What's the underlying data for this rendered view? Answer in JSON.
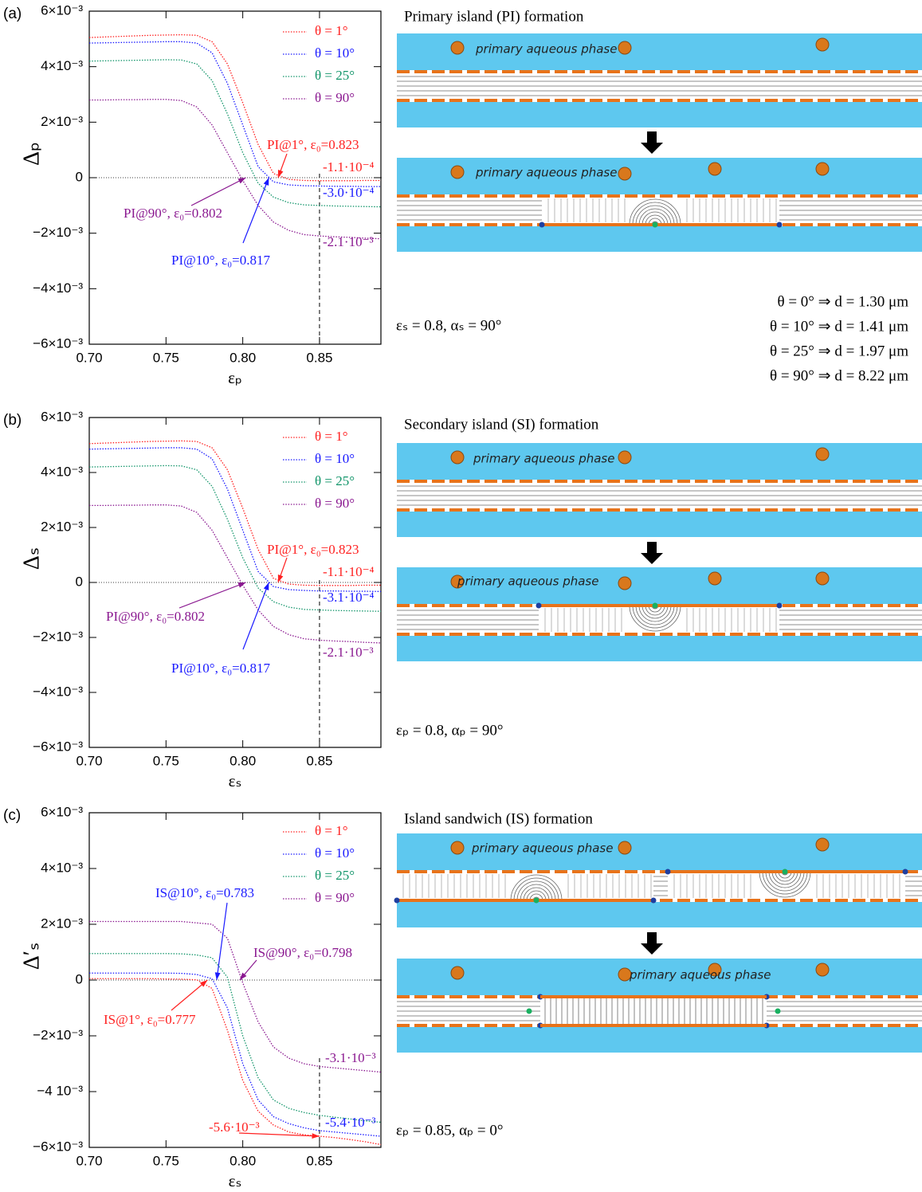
{
  "chart_data": [
    {
      "type": "line",
      "panel_label": "(a)",
      "x_label": "εₚ",
      "y_label": "Δₚ",
      "xlim": [
        0.7,
        0.89
      ],
      "ylim": [
        -0.006,
        0.006
      ],
      "xticks": [
        {
          "value": 0.7,
          "label": "0.70"
        },
        {
          "value": 0.75,
          "label": "0.75"
        },
        {
          "value": 0.8,
          "label": "0.80"
        },
        {
          "value": 0.85,
          "label": "0.85"
        }
      ],
      "yticks": [
        {
          "value": 0.006,
          "label": "6×10⁻³"
        },
        {
          "value": 0.004,
          "label": "4×10⁻³"
        },
        {
          "value": 0.002,
          "label": "2×10⁻³"
        },
        0,
        {
          "value": -0.002,
          "label": "−2×10⁻³"
        },
        {
          "value": -0.004,
          "label": "−4×10⁻³"
        },
        {
          "value": -0.006,
          "label": "−6×10⁻³"
        }
      ],
      "legend": "upper right",
      "reference_x": 0.85,
      "x": [
        0.7,
        0.71,
        0.72,
        0.73,
        0.74,
        0.75,
        0.76,
        0.77,
        0.78,
        0.79,
        0.8,
        0.81,
        0.82,
        0.83,
        0.84,
        0.85,
        0.86,
        0.87,
        0.88,
        0.89
      ],
      "series": [
        {
          "name": "θ = 1°",
          "color": "#ff2020",
          "values": [
            0.00505,
            0.00507,
            0.00509,
            0.00511,
            0.00513,
            0.00514,
            0.00515,
            0.00513,
            0.0049,
            0.0041,
            0.0027,
            0.0012,
            0.00015,
            -6e-05,
            -0.0001,
            -0.00011,
            -0.00011,
            -0.00011,
            -0.0001,
            -0.0001
          ]
        },
        {
          "name": "θ = 10°",
          "color": "#1a1aff",
          "values": [
            0.00485,
            0.00486,
            0.00487,
            0.00488,
            0.00489,
            0.0049,
            0.0049,
            0.00485,
            0.0045,
            0.0034,
            0.0019,
            0.0004,
            -0.00015,
            -0.00026,
            -0.00029,
            -0.0003,
            -0.00031,
            -0.00031,
            -0.00032,
            -0.00032
          ]
        },
        {
          "name": "θ = 25°",
          "color": "#12956a",
          "values": [
            0.0042,
            0.00421,
            0.00422,
            0.00423,
            0.00424,
            0.00425,
            0.00424,
            0.0041,
            0.0035,
            0.0023,
            0.0009,
            -0.0002,
            -0.0007,
            -0.0009,
            -0.00098,
            -0.001,
            -0.00102,
            -0.00103,
            -0.00104,
            -0.00105
          ]
        },
        {
          "name": "θ = 90°",
          "color": "#8a1890",
          "values": [
            0.0028,
            0.0028,
            0.00281,
            0.00281,
            0.00282,
            0.00282,
            0.00278,
            0.00255,
            0.0019,
            0.0009,
            -0.0001,
            -0.001,
            -0.0016,
            -0.0019,
            -0.00205,
            -0.0021,
            -0.00213,
            -0.00215,
            -0.00218,
            -0.0022
          ]
        }
      ],
      "annotations": [
        {
          "text": "PI@1°, ε₀=0.823",
          "x": 0.823,
          "y": 0,
          "color": "#ff2020"
        },
        {
          "text": "PI@90°, ε₀=0.802",
          "x": 0.802,
          "y": 0,
          "color": "#8a1890"
        },
        {
          "text": "PI@10°, ε₀=0.817",
          "x": 0.817,
          "y": 0,
          "color": "#1a1aff"
        },
        {
          "text": "-1.1·10⁻⁴",
          "x": 0.85,
          "y": -0.00011,
          "color": "#ff2020"
        },
        {
          "text": "-3.0·10⁻⁴",
          "x": 0.85,
          "y": -0.0003,
          "color": "#1a1aff"
        },
        {
          "text": "-2.1·10⁻³",
          "x": 0.85,
          "y": -0.0021,
          "color": "#8a1890"
        }
      ],
      "diagram": {
        "title": "Primary island (PI) formation",
        "labels": [
          "primary aqueous phase",
          "primary aqueous phase"
        ],
        "parameters": "εₛ = 0.8, αₛ = 90°",
        "notes": [
          "θ = 0° ⇒ d = 1.30 μm",
          "θ = 10° ⇒ d = 1.41 μm",
          "θ = 25°  ⇒ d = 1.97 μm",
          "θ = 90°  ⇒ d = 8.22 μm"
        ]
      }
    },
    {
      "type": "line",
      "panel_label": "(b)",
      "x_label": "εₛ",
      "y_label": "Δₛ",
      "xlim": [
        0.7,
        0.89
      ],
      "ylim": [
        -0.006,
        0.006
      ],
      "xticks": [
        {
          "value": 0.7,
          "label": "0.70"
        },
        {
          "value": 0.75,
          "label": "0.75"
        },
        {
          "value": 0.8,
          "label": "0.80"
        },
        {
          "value": 0.85,
          "label": "0.85"
        }
      ],
      "yticks": [
        {
          "value": 0.006,
          "label": "6×10⁻³"
        },
        {
          "value": 0.004,
          "label": "4×10⁻³"
        },
        {
          "value": 0.002,
          "label": "2×10⁻³"
        },
        0,
        {
          "value": -0.002,
          "label": "−2×10⁻³"
        },
        {
          "value": -0.004,
          "label": "−4×10⁻³"
        },
        {
          "value": -0.006,
          "label": "−6×10⁻³"
        }
      ],
      "legend": "upper right",
      "reference_x": 0.85,
      "x": [
        0.7,
        0.71,
        0.72,
        0.73,
        0.74,
        0.75,
        0.76,
        0.77,
        0.78,
        0.79,
        0.8,
        0.81,
        0.82,
        0.83,
        0.84,
        0.85,
        0.86,
        0.87,
        0.88,
        0.89
      ],
      "series": [
        {
          "name": "θ = 1°",
          "color": "#ff2020",
          "values": [
            0.00505,
            0.00507,
            0.00509,
            0.00511,
            0.00513,
            0.00514,
            0.00515,
            0.00513,
            0.0049,
            0.0041,
            0.0027,
            0.0012,
            0.00015,
            -6e-05,
            -0.0001,
            -0.00011,
            -0.00011,
            -0.00011,
            -0.0001,
            -0.0001
          ]
        },
        {
          "name": "θ = 10°",
          "color": "#1a1aff",
          "values": [
            0.00485,
            0.00486,
            0.00487,
            0.00488,
            0.00489,
            0.0049,
            0.0049,
            0.00485,
            0.0045,
            0.0034,
            0.0019,
            0.0004,
            -0.00015,
            -0.00026,
            -0.00029,
            -0.00031,
            -0.00031,
            -0.00032,
            -0.00032,
            -0.00033
          ]
        },
        {
          "name": "θ = 25°",
          "color": "#12956a",
          "values": [
            0.0042,
            0.00421,
            0.00422,
            0.00423,
            0.00424,
            0.00425,
            0.00424,
            0.0041,
            0.0035,
            0.0023,
            0.0009,
            -0.0002,
            -0.0007,
            -0.0009,
            -0.00098,
            -0.001,
            -0.00102,
            -0.00103,
            -0.00104,
            -0.00105
          ]
        },
        {
          "name": "θ = 90°",
          "color": "#8a1890",
          "values": [
            0.0028,
            0.0028,
            0.00281,
            0.00281,
            0.00282,
            0.00282,
            0.00278,
            0.00255,
            0.0019,
            0.0009,
            -0.0001,
            -0.001,
            -0.0016,
            -0.0019,
            -0.00205,
            -0.0021,
            -0.00213,
            -0.00215,
            -0.00218,
            -0.0022
          ]
        }
      ],
      "annotations": [
        {
          "text": "PI@1°, ε₀=0.823",
          "x": 0.823,
          "y": 0,
          "color": "#ff2020"
        },
        {
          "text": "PI@90°, ε₀=0.802",
          "x": 0.802,
          "y": 0,
          "color": "#8a1890"
        },
        {
          "text": "PI@10°, ε₀=0.817",
          "x": 0.817,
          "y": 0,
          "color": "#1a1aff"
        },
        {
          "text": "-1.1·10⁻⁴",
          "x": 0.85,
          "y": -0.00011,
          "color": "#ff2020"
        },
        {
          "text": "-3.1·10⁻⁴",
          "x": 0.85,
          "y": -0.00031,
          "color": "#1a1aff"
        },
        {
          "text": "-2.1·10⁻³",
          "x": 0.85,
          "y": -0.0021,
          "color": "#8a1890"
        }
      ],
      "diagram": {
        "title": "Secondary island (SI) formation",
        "labels": [
          "primary aqueous phase",
          "primary aqueous phase"
        ],
        "parameters": "εₚ = 0.8, αₚ = 90°"
      }
    },
    {
      "type": "line",
      "panel_label": "(c)",
      "x_label": "εₛ",
      "y_label": "Δ′ₛ",
      "xlim": [
        0.7,
        0.89
      ],
      "ylim": [
        -0.006,
        0.006
      ],
      "xticks": [
        {
          "value": 0.7,
          "label": "0.70"
        },
        {
          "value": 0.75,
          "label": "0.75"
        },
        {
          "value": 0.8,
          "label": "0.80"
        },
        {
          "value": 0.85,
          "label": "0.85"
        }
      ],
      "yticks": [
        {
          "value": 0.006,
          "label": "6×10⁻³"
        },
        {
          "value": 0.004,
          "label": "4×10⁻³"
        },
        {
          "value": 0.002,
          "label": "2×10⁻³"
        },
        0,
        {
          "value": -0.002,
          "label": "−2×10⁻³"
        },
        {
          "value": -0.004,
          "label": "−4  10⁻³"
        },
        {
          "value": -0.006,
          "label": "−6×10⁻³"
        }
      ],
      "legend": "upper right",
      "reference_x": 0.85,
      "x": [
        0.7,
        0.71,
        0.72,
        0.73,
        0.74,
        0.75,
        0.76,
        0.77,
        0.78,
        0.79,
        0.8,
        0.81,
        0.82,
        0.83,
        0.84,
        0.85,
        0.86,
        0.87,
        0.88,
        0.89
      ],
      "series": [
        {
          "name": "θ = 1°",
          "color": "#ff2020",
          "values": [
            5e-05,
            5e-05,
            5e-05,
            5e-05,
            5e-05,
            4e-05,
            3e-05,
            1e-05,
            -0.0003,
            -0.0018,
            -0.0036,
            -0.0047,
            -0.0052,
            -0.00545,
            -0.00555,
            -0.0056,
            -0.00565,
            -0.00572,
            -0.0058,
            -0.0059
          ]
        },
        {
          "name": "θ = 10°",
          "color": "#1a1aff",
          "values": [
            0.00025,
            0.00025,
            0.00025,
            0.00025,
            0.00025,
            0.00025,
            0.00024,
            0.0002,
            5e-05,
            -0.001,
            -0.003,
            -0.0043,
            -0.0049,
            -0.00515,
            -0.0053,
            -0.0054,
            -0.00545,
            -0.0055,
            -0.00555,
            -0.0056
          ]
        },
        {
          "name": "θ = 25°",
          "color": "#12956a",
          "values": [
            0.00095,
            0.00095,
            0.00095,
            0.00095,
            0.00095,
            0.00095,
            0.00094,
            0.0009,
            0.0008,
            0.0001,
            -0.002,
            -0.0035,
            -0.0043,
            -0.0046,
            -0.00475,
            -0.00485,
            -0.00492,
            -0.00498,
            -0.00505,
            -0.0051
          ]
        },
        {
          "name": "θ = 90°",
          "color": "#8a1890",
          "values": [
            0.0021,
            0.0021,
            0.0021,
            0.0021,
            0.0021,
            0.0021,
            0.0021,
            0.00205,
            0.002,
            0.0015,
            -0.0001,
            -0.0015,
            -0.0024,
            -0.0028,
            -0.003,
            -0.0031,
            -0.00315,
            -0.0032,
            -0.00325,
            -0.0033
          ]
        }
      ],
      "annotations": [
        {
          "text": "IS@10°, ε₀=0.783",
          "x": 0.783,
          "y": 0,
          "color": "#1a1aff"
        },
        {
          "text": "IS@90°, ε₀=0.798",
          "x": 0.798,
          "y": 0,
          "color": "#8a1890"
        },
        {
          "text": "IS@1°, ε₀=0.777",
          "x": 0.777,
          "y": 0,
          "color": "#ff2020"
        },
        {
          "text": "-3.1·10⁻³",
          "x": 0.85,
          "y": -0.0031,
          "color": "#8a1890"
        },
        {
          "text": "-5.4·10⁻³",
          "x": 0.85,
          "y": -0.0054,
          "color": "#1a1aff"
        },
        {
          "text": "-5.6·10⁻³",
          "x": 0.85,
          "y": -0.0056,
          "color": "#ff2020"
        }
      ],
      "diagram": {
        "title": "Island sandwich (IS) formation",
        "labels": [
          "primary aqueous phase",
          "primary aqueous phase"
        ],
        "parameters": "εₚ = 0.85, αₚ = 0°"
      }
    }
  ]
}
